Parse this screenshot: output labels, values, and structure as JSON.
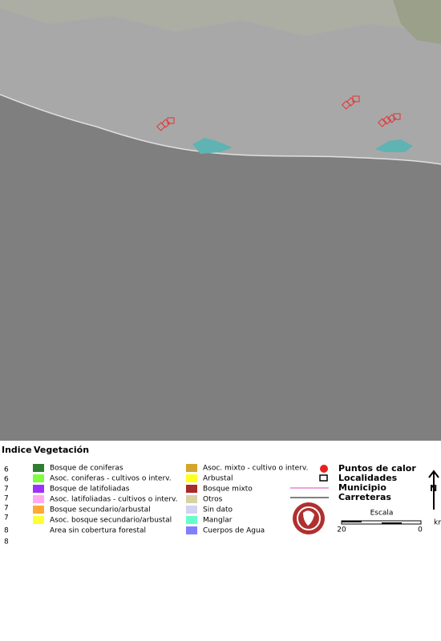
{
  "legend": {
    "index_heading": "Indice",
    "vegetation_heading": "Vegetación",
    "index_values": [
      "6",
      "6",
      "7",
      "7",
      "7",
      "7",
      "8",
      "8"
    ],
    "vegetation_col1": [
      {
        "label": "Bosque de coniferas",
        "color": "#2f7d2f"
      },
      {
        "label": "Asoc. coniferas - cultivos o interv.",
        "color": "#7fff3f"
      },
      {
        "label": "Bosque de latifoliadas",
        "color": "#a030ff"
      },
      {
        "label": "Asoc. latifoliadas - cultivos o interv.",
        "color": "#ffaaf0"
      },
      {
        "label": "Bosque secundario/arbustal",
        "color": "#ffaa33"
      },
      {
        "label": "Asoc. bosque secundario/arbustal",
        "color": "#ffff33"
      },
      {
        "label": "Area sin cobertura forestal"
      }
    ],
    "vegetation_col2": [
      {
        "label": "Asoc. mixto - cultivo o interv.",
        "color": "#d4a52a"
      },
      {
        "label": "Arbustal",
        "color": "#ffff22"
      },
      {
        "label": "Bosque mixto",
        "color": "#a82a2a"
      },
      {
        "label": "Otros",
        "color": "#d8d2a6"
      },
      {
        "label": "Sin dato",
        "color": "#d2d2f2"
      },
      {
        "label": "Manglar",
        "color": "#66ffcc"
      },
      {
        "label": "Cuerpos de Agua",
        "color": "#8080ff"
      }
    ],
    "symbols": {
      "hotspots": "Puntos de calor",
      "localities": "Localidades",
      "municipality": "Municipio",
      "roads": "Carreteras"
    },
    "scale": {
      "title": "Escala",
      "left": "20",
      "right": "0",
      "unit": "km"
    },
    "north": "N"
  }
}
